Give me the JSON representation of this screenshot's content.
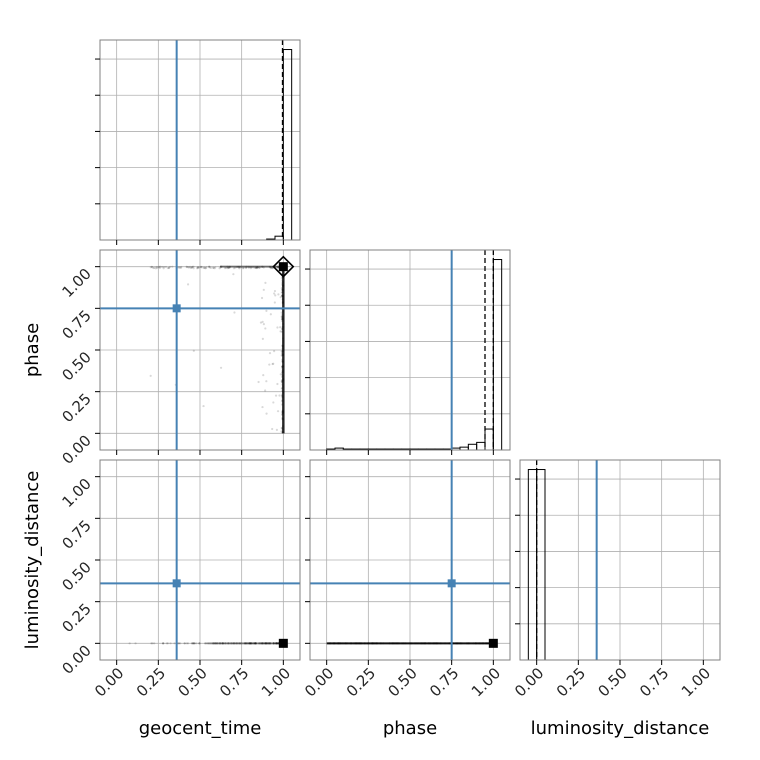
{
  "chart_data": {
    "type": "corner",
    "parameters": [
      "geocent_time",
      "phase",
      "luminosity_distance"
    ],
    "tick_values": [
      0.0,
      0.25,
      0.5,
      0.75,
      1.0
    ],
    "tick_labels": [
      "0.00",
      "0.25",
      "0.50",
      "0.75",
      "1.00"
    ],
    "grid": true,
    "colors": {
      "truth": "#4682b4",
      "samples": "#000000",
      "grid": "#b0b0b0",
      "frame": "#808080"
    },
    "truths": {
      "geocent_time": 0.36,
      "phase": 0.75,
      "luminosity_distance": 0.36
    },
    "quantile_lines": {
      "geocent_time": [
        0.995
      ],
      "phase": [
        0.95,
        1.0
      ],
      "luminosity_distance": [
        0.0
      ]
    },
    "marginals": {
      "geocent_time": {
        "bin_edges": [
          0.0,
          0.05,
          0.1,
          0.15,
          0.2,
          0.25,
          0.3,
          0.35,
          0.4,
          0.45,
          0.5,
          0.55,
          0.6,
          0.65,
          0.7,
          0.75,
          0.8,
          0.85,
          0.9,
          0.95,
          1.0,
          1.05
        ],
        "heights": [
          0.0,
          0.0,
          0.0,
          0.0,
          0.0,
          0.0,
          0.0,
          0.0,
          0.0,
          0.0,
          0.0,
          0.0,
          0.0,
          0.0,
          0.0,
          0.0,
          0.0,
          0.0,
          0.005,
          0.02,
          1.0
        ]
      },
      "phase": {
        "bin_edges": [
          0.0,
          0.05,
          0.1,
          0.15,
          0.2,
          0.25,
          0.3,
          0.35,
          0.4,
          0.45,
          0.5,
          0.55,
          0.6,
          0.65,
          0.7,
          0.75,
          0.8,
          0.85,
          0.9,
          0.95,
          1.0,
          1.05
        ],
        "heights": [
          0.005,
          0.01,
          0.005,
          0.005,
          0.005,
          0.005,
          0.005,
          0.005,
          0.005,
          0.005,
          0.005,
          0.005,
          0.005,
          0.005,
          0.005,
          0.01,
          0.015,
          0.03,
          0.04,
          0.11,
          1.0
        ]
      },
      "luminosity_distance": {
        "bin_edges": [
          -0.05,
          0.0,
          0.05
        ],
        "heights": [
          1.0,
          1.0
        ]
      }
    },
    "pairs": [
      {
        "x": "geocent_time",
        "y": "phase",
        "mode": {
          "x": 1.0,
          "y": 1.0
        }
      },
      {
        "x": "geocent_time",
        "y": "luminosity_distance",
        "mode": {
          "x": 1.0,
          "y": 0.0
        }
      },
      {
        "x": "phase",
        "y": "luminosity_distance",
        "mode": {
          "x": 1.0,
          "y": 0.0
        }
      }
    ]
  }
}
